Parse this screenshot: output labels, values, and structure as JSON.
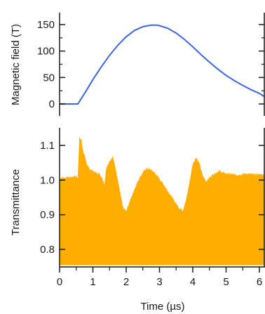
{
  "chart_data": [
    {
      "type": "line",
      "xlabel": "",
      "ylabel": "Magnetic field (T)",
      "xlim": [
        0,
        6.2
      ],
      "ylim": [
        -12,
        165
      ],
      "yticks": [
        0,
        50,
        100,
        150
      ],
      "ytick_labels": [
        "0",
        "50",
        "100",
        "150"
      ],
      "colors": {
        "line": "#3f66e0"
      },
      "series": [
        {
          "x": [
            0,
            0.3,
            0.55,
            0.8,
            1.0,
            1.25,
            1.5,
            1.75,
            2.0,
            2.25,
            2.5,
            2.75,
            2.9,
            3.0,
            3.25,
            3.5,
            3.75,
            4.0,
            4.25,
            4.5,
            4.75,
            5.0,
            5.25,
            5.5,
            5.75,
            6.0,
            6.2
          ],
          "y": [
            0,
            0,
            0,
            25,
            46,
            70,
            92,
            111,
            127,
            139,
            146,
            149,
            149,
            148,
            143,
            134,
            122,
            108,
            93,
            79,
            66,
            54,
            44,
            35,
            27,
            20,
            14
          ]
        }
      ]
    },
    {
      "type": "area",
      "xlabel": "Time (µs)",
      "ylabel": "Transmittance",
      "xlim": [
        -0.1,
        6.2
      ],
      "ylim": [
        0.745,
        1.15
      ],
      "xticks": [
        0,
        1,
        2,
        3,
        4,
        5,
        6
      ],
      "xtick_labels": [
        "0",
        "1",
        "2",
        "3",
        "4",
        "5",
        "6"
      ],
      "yticks": [
        0.8,
        0.9,
        1.0,
        1.1
      ],
      "ytick_labels": [
        "0.8",
        "0.9",
        "1.0",
        "1.1"
      ],
      "baseline": 0.755,
      "colors": {
        "fill": "#ffad00"
      },
      "series": [
        {
          "x": [
            0,
            0.3,
            0.5,
            0.55,
            0.6,
            0.65,
            0.7,
            0.8,
            0.9,
            1.0,
            1.1,
            1.2,
            1.3,
            1.35,
            1.4,
            1.5,
            1.6,
            1.7,
            1.8,
            1.9,
            2.0,
            2.1,
            2.2,
            2.3,
            2.4,
            2.5,
            2.6,
            2.7,
            2.8,
            2.9,
            3.0,
            3.1,
            3.2,
            3.3,
            3.4,
            3.5,
            3.6,
            3.7,
            3.8,
            3.9,
            4.0,
            4.1,
            4.2,
            4.3,
            4.4,
            4.5,
            4.6,
            4.7,
            4.8,
            4.9,
            5.0,
            5.2,
            5.4,
            5.6,
            5.8,
            6.0,
            6.15
          ],
          "y": [
            1.005,
            1.007,
            1.01,
            1.005,
            1.12,
            1.115,
            1.085,
            1.05,
            1.03,
            1.025,
            1.02,
            1.018,
            1.0,
            0.985,
            1.03,
            1.055,
            1.065,
            1.02,
            0.97,
            0.92,
            0.91,
            0.935,
            0.96,
            0.985,
            1.005,
            1.02,
            1.032,
            1.03,
            1.025,
            1.015,
            1.002,
            0.99,
            0.975,
            0.96,
            0.945,
            0.93,
            0.918,
            0.912,
            0.94,
            0.99,
            1.045,
            1.065,
            1.045,
            1.01,
            0.995,
            1.005,
            1.015,
            1.02,
            1.025,
            1.02,
            1.018,
            1.015,
            1.015,
            1.017,
            1.015,
            1.015,
            1.015
          ]
        }
      ]
    }
  ]
}
